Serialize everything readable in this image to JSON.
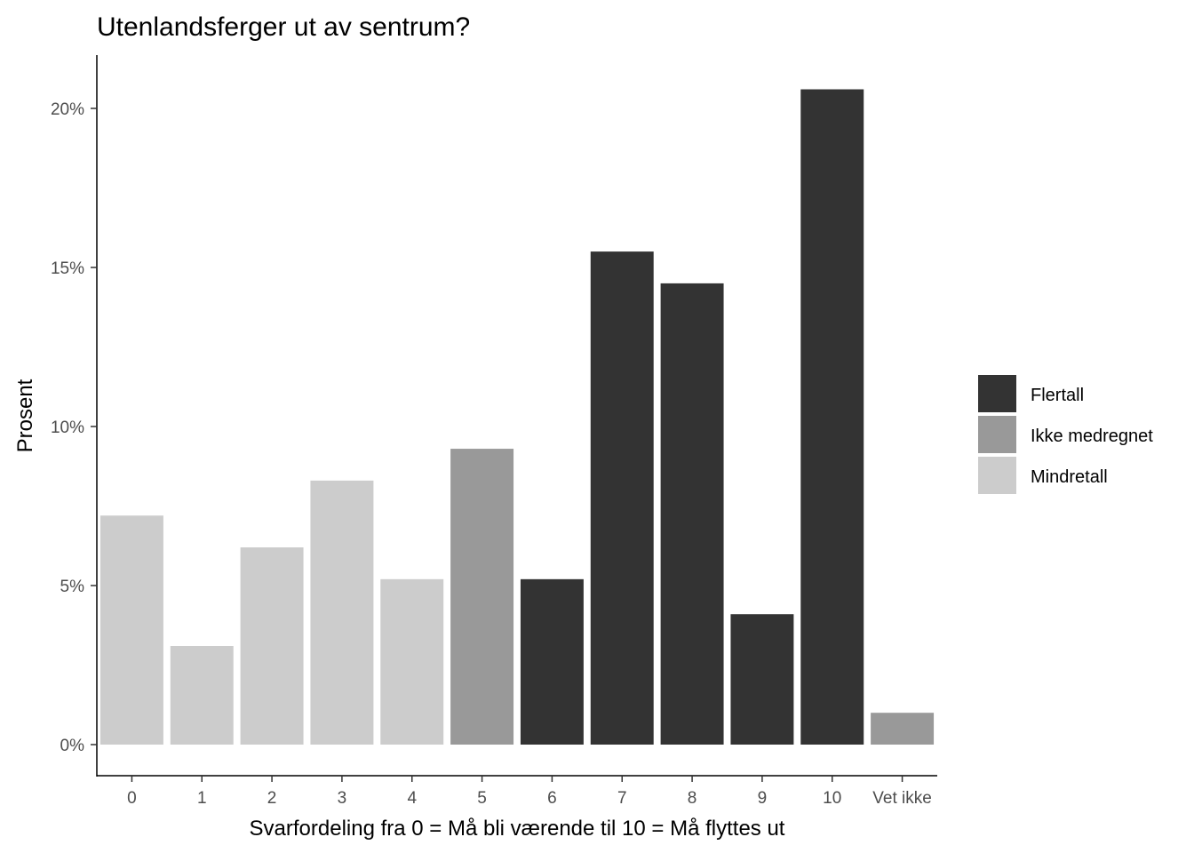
{
  "chart_data": {
    "type": "bar",
    "title": "Utenlandsferger ut av sentrum?",
    "xlabel": "Svarfordeling fra 0 = Må bli værende til 10 = Må flyttes ut",
    "ylabel": "Prosent",
    "categories": [
      "0",
      "1",
      "2",
      "3",
      "4",
      "5",
      "6",
      "7",
      "8",
      "9",
      "10",
      "Vet ikke"
    ],
    "values": [
      7.2,
      3.1,
      6.2,
      8.3,
      5.2,
      9.3,
      5.2,
      15.5,
      14.5,
      4.1,
      20.6,
      1.0
    ],
    "groups": [
      "Mindretall",
      "Mindretall",
      "Mindretall",
      "Mindretall",
      "Mindretall",
      "Ikke medregnet",
      "Flertall",
      "Flertall",
      "Flertall",
      "Flertall",
      "Flertall",
      "Ikke medregnet"
    ],
    "ylim": [
      0,
      21.6
    ],
    "yticks": [
      0,
      5,
      10,
      15,
      20
    ],
    "ytick_labels": [
      "0%",
      "5%",
      "10%",
      "15%",
      "20%"
    ],
    "grid": false,
    "legend_position": "right",
    "legend": [
      {
        "name": "Flertall",
        "color": "#333333"
      },
      {
        "name": "Ikke medregnet",
        "color": "#999999"
      },
      {
        "name": "Mindretall",
        "color": "#cccccc"
      }
    ]
  }
}
